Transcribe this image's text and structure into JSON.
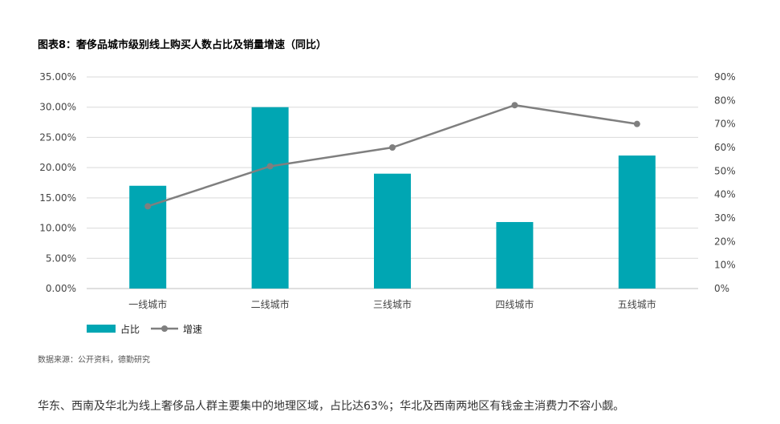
{
  "title": "图表8：奢侈品城市级别线上购买人数占比及销量增速（同比）",
  "source": "数据来源：公开资料，德勤研究",
  "caption": "华东、西南及华北为线上奢侈品人群主要集中的地理区域，占比达63%；华北及西南两地区有钱金主消费力不容小觑。",
  "colors": {
    "bar": "#00a6b3",
    "line": "#7f7f7f",
    "grid": "#d9d9d9"
  },
  "chart_data": {
    "type": "bar",
    "categories": [
      "一线城市",
      "二线城市",
      "三线城市",
      "四线城市",
      "五线城市"
    ],
    "series": [
      {
        "name": "占比",
        "type": "bar",
        "axis": "left",
        "values": [
          17,
          30,
          19,
          11,
          22
        ]
      },
      {
        "name": "增速",
        "type": "line",
        "axis": "right",
        "values": [
          35,
          52,
          60,
          78,
          70
        ]
      }
    ],
    "y_left": {
      "ticks": [
        "0.00%",
        "5.00%",
        "10.00%",
        "15.00%",
        "20.00%",
        "25.00%",
        "30.00%",
        "35.00%"
      ],
      "range": [
        0,
        35
      ],
      "unit": "%"
    },
    "y_right": {
      "ticks": [
        "0%",
        "10%",
        "20%",
        "30%",
        "40%",
        "50%",
        "60%",
        "70%",
        "80%",
        "90%"
      ],
      "range": [
        0,
        90
      ],
      "unit": "%"
    },
    "legend_position": "bottom-left",
    "grid": true
  }
}
